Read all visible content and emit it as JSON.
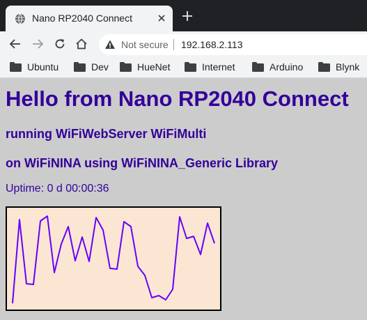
{
  "browser": {
    "tab": {
      "title": "Nano RP2040 Connect",
      "favicon": "globe-icon"
    },
    "toolbar": {
      "security_label": "Not secure",
      "url": "192.168.2.113"
    },
    "bookmarks": [
      {
        "label": "Ubuntu"
      },
      {
        "label": "Dev"
      },
      {
        "label": "HueNet"
      },
      {
        "label": "Internet"
      },
      {
        "label": "Arduino"
      },
      {
        "label": "Blynk"
      }
    ]
  },
  "page": {
    "heading": "Hello from Nano RP2040 Connect",
    "subheading1": "running WiFiWebServer WiFiMulti",
    "subheading2": "on WiFiNINA using WiFiNINA_Generic Library",
    "uptime": "Uptime: 0 d 00:00:36"
  },
  "colors": {
    "text": "#330099",
    "chart_fill": "#fae6d2",
    "chart_line": "#6600ff",
    "page_bg": "#cccccc"
  },
  "chart_data": {
    "type": "line",
    "x": [
      0,
      1,
      2,
      3,
      4,
      5,
      6,
      7,
      8,
      9,
      10,
      11,
      12,
      13,
      14,
      15,
      16,
      17,
      18,
      19,
      20,
      21,
      22,
      23,
      24,
      25,
      26,
      27,
      28,
      29
    ],
    "values": [
      10,
      130,
      38,
      37,
      128,
      135,
      54,
      95,
      120,
      71,
      105,
      70,
      133,
      115,
      60,
      59,
      127,
      120,
      63,
      50,
      18,
      21,
      15,
      30,
      134,
      103,
      106,
      80,
      125,
      96
    ],
    "ylim": [
      0,
      148
    ]
  }
}
